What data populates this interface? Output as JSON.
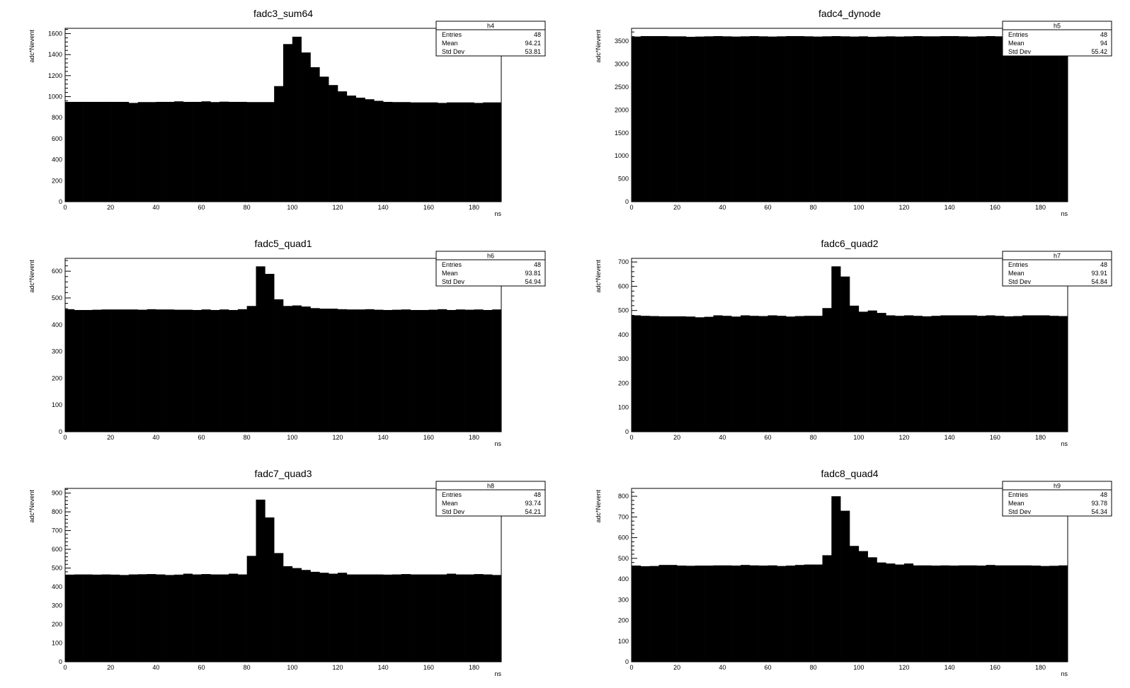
{
  "chart_data": [
    {
      "type": "bar",
      "title": "fadc3_sum64",
      "xlabel": "ns",
      "ylabel": "adc*Nevent",
      "xlim": [
        0,
        192
      ],
      "ylim": [
        0,
        1650
      ],
      "bin_width": 4,
      "xticks": [
        0,
        20,
        40,
        60,
        80,
        100,
        120,
        140,
        160,
        180
      ],
      "yticks": [
        0,
        200,
        400,
        600,
        800,
        1000,
        1200,
        1400,
        1600
      ],
      "values": [
        950,
        950,
        950,
        950,
        950,
        950,
        950,
        940,
        948,
        948,
        950,
        950,
        955,
        950,
        950,
        955,
        948,
        952,
        950,
        950,
        948,
        948,
        948,
        1100,
        1500,
        1570,
        1420,
        1280,
        1190,
        1110,
        1050,
        1010,
        990,
        975,
        960,
        950,
        948,
        948,
        945,
        945,
        945,
        940,
        945,
        945,
        945,
        940,
        945,
        945
      ],
      "stats": {
        "name": "h4",
        "entries_label": "Entries",
        "entries": "48",
        "mean_label": "Mean",
        "mean": "94.21",
        "std_label": "Std Dev",
        "std": "53.81"
      },
      "colors": {
        "bars": "#000000"
      }
    },
    {
      "type": "bar",
      "title": "fadc4_dynode",
      "xlabel": "ns",
      "ylabel": "adc*Nevent",
      "xlim": [
        0,
        192
      ],
      "ylim": [
        0,
        3780
      ],
      "bin_width": 4,
      "xticks": [
        0,
        20,
        40,
        60,
        80,
        100,
        120,
        140,
        160,
        180
      ],
      "yticks": [
        0,
        500,
        1000,
        1500,
        2000,
        2500,
        3000,
        3500
      ],
      "values": [
        3600,
        3610,
        3610,
        3610,
        3605,
        3605,
        3595,
        3600,
        3605,
        3610,
        3605,
        3600,
        3605,
        3610,
        3605,
        3600,
        3605,
        3610,
        3610,
        3605,
        3600,
        3605,
        3610,
        3605,
        3600,
        3605,
        3595,
        3600,
        3605,
        3600,
        3605,
        3610,
        3605,
        3605,
        3610,
        3610,
        3605,
        3600,
        3605,
        3610,
        3605,
        3605,
        3600,
        3605,
        3605,
        3610,
        3605,
        3600
      ],
      "stats": {
        "name": "h5",
        "entries_label": "Entries",
        "entries": "48",
        "mean_label": "Mean",
        "mean": "94",
        "std_label": "Std Dev",
        "std": "55.42"
      },
      "colors": {
        "bars": "#000000"
      }
    },
    {
      "type": "bar",
      "title": "fadc5_quad1",
      "xlabel": "ns",
      "ylabel": "adc*Nevent",
      "xlim": [
        0,
        192
      ],
      "ylim": [
        0,
        648
      ],
      "bin_width": 4,
      "xticks": [
        0,
        20,
        40,
        60,
        80,
        100,
        120,
        140,
        160,
        180
      ],
      "yticks": [
        0,
        100,
        200,
        300,
        400,
        500,
        600
      ],
      "values": [
        458,
        455,
        455,
        456,
        457,
        457,
        457,
        457,
        456,
        458,
        457,
        457,
        456,
        456,
        455,
        457,
        455,
        457,
        455,
        458,
        470,
        618,
        590,
        495,
        470,
        472,
        468,
        462,
        460,
        460,
        458,
        457,
        457,
        458,
        456,
        455,
        456,
        457,
        455,
        455,
        456,
        458,
        455,
        457,
        456,
        457,
        455,
        457
      ],
      "stats": {
        "name": "h6",
        "entries_label": "Entries",
        "entries": "48",
        "mean_label": "Mean",
        "mean": "93.81",
        "std_label": "Std Dev",
        "std": "54.94"
      },
      "colors": {
        "bars": "#000000"
      }
    },
    {
      "type": "bar",
      "title": "fadc6_quad2",
      "xlabel": "ns",
      "ylabel": "adc*Nevent",
      "xlim": [
        0,
        192
      ],
      "ylim": [
        0,
        715
      ],
      "bin_width": 4,
      "xticks": [
        0,
        20,
        40,
        60,
        80,
        100,
        120,
        140,
        160,
        180
      ],
      "yticks": [
        0,
        100,
        200,
        300,
        400,
        500,
        600,
        700
      ],
      "values": [
        480,
        478,
        477,
        476,
        476,
        476,
        475,
        472,
        474,
        480,
        478,
        475,
        480,
        478,
        477,
        480,
        478,
        475,
        477,
        478,
        478,
        510,
        682,
        640,
        520,
        495,
        500,
        490,
        480,
        478,
        480,
        478,
        476,
        478,
        480,
        480,
        480,
        480,
        478,
        480,
        478,
        476,
        477,
        480,
        480,
        480,
        478,
        477
      ],
      "stats": {
        "name": "h7",
        "entries_label": "Entries",
        "entries": "48",
        "mean_label": "Mean",
        "mean": "93.91",
        "std_label": "Std Dev",
        "std": "54.84"
      },
      "colors": {
        "bars": "#000000"
      }
    },
    {
      "type": "bar",
      "title": "fadc7_quad3",
      "xlabel": "ns",
      "ylabel": "adc*Nevent",
      "xlim": [
        0,
        192
      ],
      "ylim": [
        0,
        925
      ],
      "bin_width": 4,
      "xticks": [
        0,
        20,
        40,
        60,
        80,
        100,
        120,
        140,
        160,
        180
      ],
      "yticks": [
        0,
        100,
        200,
        300,
        400,
        500,
        600,
        700,
        800,
        900
      ],
      "values": [
        465,
        466,
        466,
        465,
        466,
        465,
        463,
        466,
        467,
        468,
        466,
        463,
        465,
        470,
        466,
        468,
        466,
        466,
        470,
        466,
        565,
        865,
        770,
        580,
        510,
        500,
        490,
        480,
        475,
        470,
        475,
        466,
        466,
        466,
        466,
        465,
        466,
        468,
        466,
        466,
        466,
        466,
        470,
        466,
        466,
        468,
        466,
        463
      ],
      "stats": {
        "name": "h8",
        "entries_label": "Entries",
        "entries": "48",
        "mean_label": "Mean",
        "mean": "93.74",
        "std_label": "Std Dev",
        "std": "54.21"
      },
      "colors": {
        "bars": "#000000"
      }
    },
    {
      "type": "bar",
      "title": "fadc8_quad4",
      "xlabel": "ns",
      "ylabel": "adc*Nevent",
      "xlim": [
        0,
        192
      ],
      "ylim": [
        0,
        838
      ],
      "bin_width": 4,
      "xticks": [
        0,
        20,
        40,
        60,
        80,
        100,
        120,
        140,
        160,
        180
      ],
      "yticks": [
        0,
        100,
        200,
        300,
        400,
        500,
        600,
        700,
        800
      ],
      "values": [
        465,
        462,
        463,
        468,
        468,
        465,
        464,
        465,
        465,
        466,
        466,
        465,
        468,
        466,
        465,
        466,
        463,
        465,
        468,
        470,
        470,
        515,
        800,
        730,
        560,
        535,
        505,
        480,
        475,
        470,
        475,
        466,
        466,
        465,
        466,
        465,
        466,
        466,
        465,
        468,
        466,
        466,
        466,
        466,
        465,
        463,
        464,
        466
      ],
      "stats": {
        "name": "h9",
        "entries_label": "Entries",
        "entries": "48",
        "mean_label": "Mean",
        "mean": "93.78",
        "std_label": "Std Dev",
        "std": "54.34"
      },
      "colors": {
        "bars": "#000000"
      }
    }
  ]
}
